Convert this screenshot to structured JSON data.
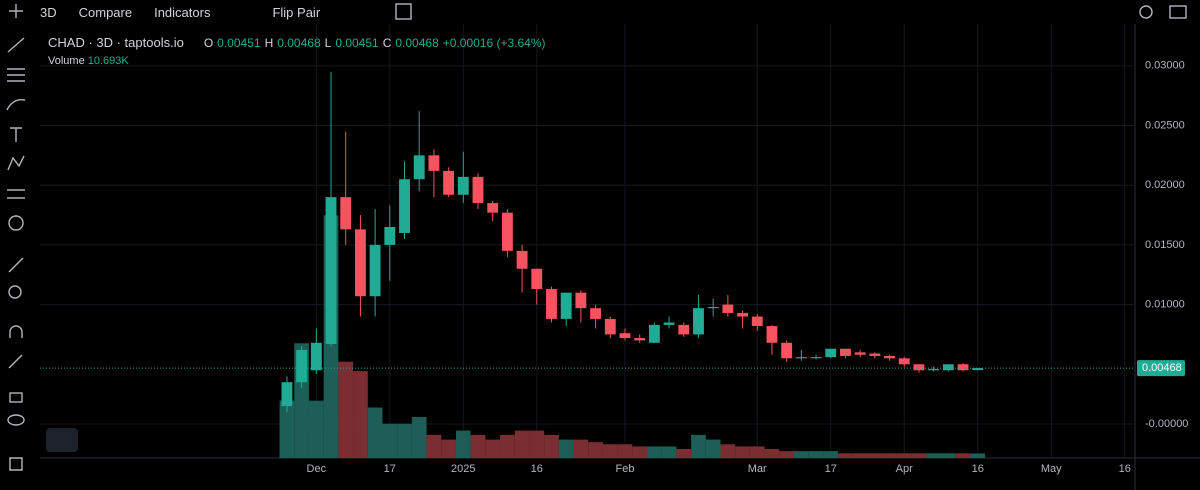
{
  "toolbar": {
    "interval": "3D",
    "compare": "Compare",
    "indicators": "Indicators",
    "flip": "Flip Pair"
  },
  "header": {
    "symbol": "CHAD · 3D · taptools.io",
    "o": "O",
    "h": "H",
    "l": "L",
    "c": "C",
    "change": "+0.00016 (+3.64%)",
    "volume_label": "Volume",
    "volume_value": "10.693K"
  },
  "chart_data": {
    "type": "candlestick",
    "categories": [
      null,
      null,
      null,
      null,
      null,
      null,
      null,
      null,
      null,
      null,
      null,
      null,
      null,
      null,
      null,
      null,
      null,
      null,
      null,
      null,
      null,
      null,
      null,
      null,
      null,
      null,
      null,
      null,
      null,
      null,
      null,
      null,
      null,
      null,
      null,
      null,
      null,
      null,
      null,
      null,
      null,
      null,
      null,
      null,
      null,
      null,
      null,
      null
    ],
    "open": [
      0.0015,
      0.0035,
      0.0045,
      0.0067,
      0.019,
      0.0163,
      0.0107,
      0.015,
      0.016,
      0.0205,
      0.0225,
      0.0212,
      0.0192,
      0.0207,
      0.0185,
      0.0177,
      0.0145,
      0.013,
      0.0113,
      0.0088,
      0.011,
      0.0097,
      0.0088,
      0.0076,
      0.0072,
      0.0068,
      0.0083,
      0.0083,
      0.0075,
      0.0097,
      0.01,
      0.0093,
      0.009,
      0.0082,
      0.0068,
      0.0055,
      0.0055,
      0.0056,
      0.0063,
      0.006,
      0.0059,
      0.0057,
      0.0055,
      0.005,
      0.0045,
      0.0045,
      0.005,
      0.00451
    ],
    "high": [
      0.004,
      0.0065,
      0.008,
      0.0295,
      0.0245,
      0.0175,
      0.018,
      0.0183,
      0.022,
      0.0262,
      0.023,
      0.0215,
      0.0228,
      0.021,
      0.0187,
      0.018,
      0.015,
      0.013,
      0.0115,
      0.011,
      0.0112,
      0.01,
      0.009,
      0.008,
      0.0075,
      0.0085,
      0.009,
      0.0085,
      0.0108,
      0.0105,
      0.0108,
      0.0095,
      0.0092,
      0.0083,
      0.007,
      0.0062,
      0.0058,
      0.0063,
      0.0063,
      0.0062,
      0.006,
      0.0058,
      0.0056,
      0.005,
      0.0048,
      0.005,
      0.0051,
      0.00468
    ],
    "low": [
      0.001,
      0.003,
      0.0042,
      0.0065,
      0.015,
      0.009,
      0.009,
      0.012,
      0.0155,
      0.0195,
      0.019,
      0.019,
      0.0185,
      0.018,
      0.017,
      0.014,
      0.011,
      0.01,
      0.0085,
      0.0082,
      0.0085,
      0.008,
      0.0072,
      0.007,
      0.0068,
      0.0068,
      0.008,
      0.0073,
      0.0072,
      0.009,
      0.009,
      0.008,
      0.0078,
      0.0058,
      0.0052,
      0.0053,
      0.0054,
      0.0055,
      0.0055,
      0.0056,
      0.0055,
      0.0053,
      0.0048,
      0.0043,
      0.0044,
      0.0044,
      0.0044,
      0.00451
    ],
    "close": [
      0.0035,
      0.0062,
      0.0068,
      0.019,
      0.0163,
      0.0107,
      0.015,
      0.0165,
      0.0205,
      0.0225,
      0.0212,
      0.0192,
      0.0207,
      0.0185,
      0.0177,
      0.0145,
      0.013,
      0.0113,
      0.0088,
      0.011,
      0.0097,
      0.0088,
      0.0075,
      0.0072,
      0.007,
      0.0083,
      0.0085,
      0.0075,
      0.0097,
      0.0098,
      0.0093,
      0.009,
      0.0082,
      0.0068,
      0.0055,
      0.0056,
      0.0056,
      0.0063,
      0.0057,
      0.0058,
      0.0057,
      0.0055,
      0.005,
      0.0045,
      0.0046,
      0.005,
      0.0045,
      0.00468
    ],
    "volume": [
      134,
      268,
      134,
      567,
      225,
      203,
      118,
      80,
      80,
      96,
      54,
      43,
      64,
      54,
      43,
      54,
      64,
      64,
      54,
      43,
      43,
      37,
      32,
      32,
      27,
      27,
      27,
      21,
      54,
      43,
      32,
      27,
      27,
      21,
      16,
      16,
      16,
      16,
      11,
      11,
      11,
      11,
      11,
      11,
      11,
      11,
      11,
      10.693
    ],
    "vlim": [
      0,
      1000
    ],
    "up_color": "#22ab94",
    "down_color": "#f7525f",
    "vol_up_color": "#1d5f57",
    "vol_down_color": "#7a2e31",
    "xlim": [
      -16.8,
      57.7
    ],
    "xticks": [
      {
        "value": 2,
        "label": "Dec"
      },
      {
        "value": 7,
        "label": "17"
      },
      {
        "value": 12,
        "label": "2025"
      },
      {
        "value": 17,
        "label": "16"
      },
      {
        "value": 23,
        "label": "Feb"
      },
      {
        "value": 32,
        "label": "Mar"
      },
      {
        "value": 37,
        "label": "17"
      },
      {
        "value": 42,
        "label": "Apr"
      },
      {
        "value": 47,
        "label": "16"
      },
      {
        "value": 52,
        "label": "May"
      },
      {
        "value": 57,
        "label": "16"
      }
    ],
    "ylim": [
      -0.00285,
      0.033
    ],
    "yticks": [
      {
        "value": 0.03,
        "label": "0.03000"
      },
      {
        "value": 0.025,
        "label": "0.02500"
      },
      {
        "value": 0.02,
        "label": "0.02000"
      },
      {
        "value": 0.015,
        "label": "0.01500"
      },
      {
        "value": 0.01,
        "label": "0.01000"
      },
      {
        "value": 0,
        "label": "-0.00000"
      }
    ],
    "grid": true
  }
}
